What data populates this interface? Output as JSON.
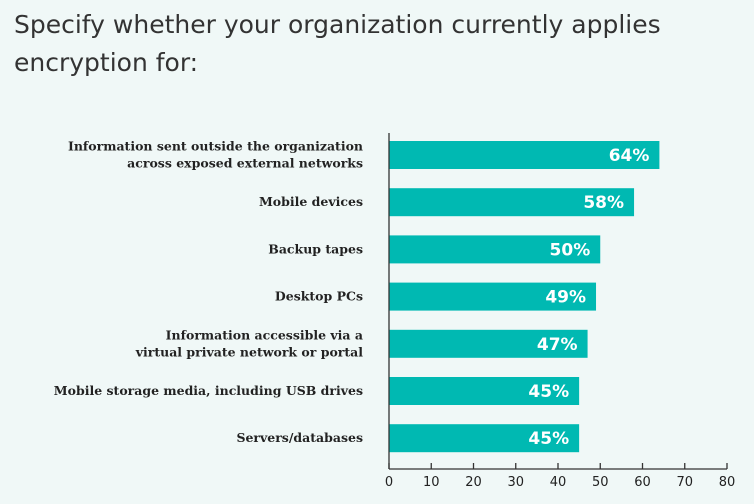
{
  "chart_data": {
    "type": "bar",
    "orientation": "horizontal",
    "title": "Specify whether your organization currently applies encryption for:",
    "categories": [
      [
        "Information sent outside the organization",
        "across exposed external networks"
      ],
      [
        "Mobile devices"
      ],
      [
        "Backup tapes"
      ],
      [
        "Desktop PCs"
      ],
      [
        "Information accessible via a",
        "virtual private network or portal"
      ],
      [
        "Mobile storage media, including USB drives"
      ],
      [
        "Servers/databases"
      ]
    ],
    "values": [
      64,
      58,
      50,
      49,
      47,
      45,
      45
    ],
    "data_labels": [
      "64%",
      "58%",
      "50%",
      "49%",
      "47%",
      "45%",
      "45%"
    ],
    "xlim": [
      0,
      80
    ],
    "xticks": [
      "0",
      "10",
      "20",
      "30",
      "40",
      "50",
      "60",
      "70",
      "80"
    ],
    "grid": false,
    "bar_color": "#00b9b2"
  }
}
